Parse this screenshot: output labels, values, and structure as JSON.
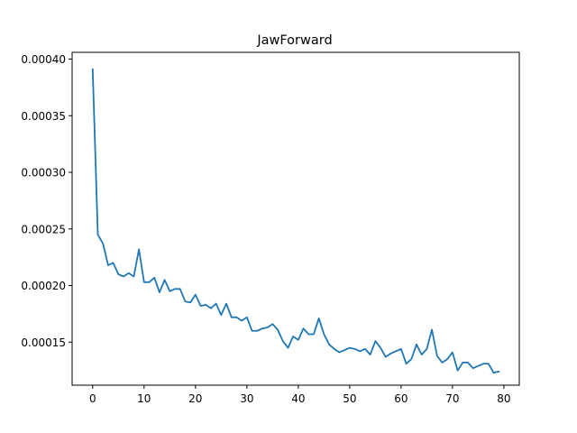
{
  "chart_data": {
    "type": "line",
    "title": "JawForward",
    "xlabel": "",
    "ylabel": "",
    "xlim": [
      -4,
      83
    ],
    "ylim": [
      0.000112,
      0.000406
    ],
    "x_ticks": [
      0,
      10,
      20,
      30,
      40,
      50,
      60,
      70,
      80
    ],
    "y_ticks": [
      0.00015,
      0.0002,
      0.00025,
      0.0003,
      0.00035,
      0.0004
    ],
    "y_tick_labels": [
      "0.00015",
      "0.00020",
      "0.00025",
      "0.00030",
      "0.00035",
      "0.00040"
    ],
    "grid": false,
    "legend": "none",
    "series": [
      {
        "color": "#1f77b4",
        "x": [
          0,
          1,
          2,
          3,
          4,
          5,
          6,
          7,
          8,
          9,
          10,
          11,
          12,
          13,
          14,
          15,
          16,
          17,
          18,
          19,
          20,
          21,
          22,
          23,
          24,
          25,
          26,
          27,
          28,
          29,
          30,
          31,
          32,
          33,
          34,
          35,
          36,
          37,
          38,
          39,
          40,
          41,
          42,
          43,
          44,
          45,
          46,
          47,
          48,
          49,
          50,
          51,
          52,
          53,
          54,
          55,
          56,
          57,
          58,
          59,
          60,
          61,
          62,
          63,
          64,
          65,
          66,
          67,
          68,
          69,
          70,
          71,
          72,
          73,
          74,
          75,
          76,
          77,
          78,
          79
        ],
        "values": [
          0.000391,
          0.000245,
          0.000237,
          0.000218,
          0.00022,
          0.00021,
          0.000208,
          0.000211,
          0.000208,
          0.000232,
          0.000203,
          0.000203,
          0.000207,
          0.000194,
          0.000205,
          0.000195,
          0.000197,
          0.000197,
          0.000186,
          0.000185,
          0.000192,
          0.000182,
          0.000183,
          0.00018,
          0.000184,
          0.000174,
          0.000184,
          0.000172,
          0.000172,
          0.000169,
          0.000172,
          0.00016,
          0.00016,
          0.000162,
          0.000163,
          0.000166,
          0.000161,
          0.000151,
          0.000145,
          0.000155,
          0.000152,
          0.000162,
          0.000157,
          0.000157,
          0.000171,
          0.000157,
          0.000148,
          0.000144,
          0.000141,
          0.000143,
          0.000145,
          0.000144,
          0.000142,
          0.000144,
          0.000139,
          0.000151,
          0.000145,
          0.000137,
          0.00014,
          0.000142,
          0.000144,
          0.000131,
          0.000135,
          0.000148,
          0.000139,
          0.000144,
          0.000161,
          0.000138,
          0.000132,
          0.000135,
          0.000141,
          0.000125,
          0.000132,
          0.000132,
          0.000127,
          0.000129,
          0.000131,
          0.000131,
          0.000123,
          0.000124
        ]
      }
    ]
  }
}
